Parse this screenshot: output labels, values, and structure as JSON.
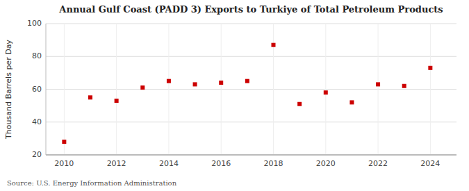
{
  "chart_data": {
    "type": "scatter",
    "title": "Annual Gulf Coast (PADD 3) Exports to Turkiye of Total Petroleum Products",
    "ylabel": "Thousand Barrels per Day",
    "source": "Source: U.S. Energy Information Administration",
    "x": [
      2010,
      2011,
      2012,
      2013,
      2014,
      2015,
      2016,
      2017,
      2018,
      2019,
      2020,
      2021,
      2022,
      2023,
      2024
    ],
    "values": [
      28,
      55,
      53,
      61,
      65,
      63,
      64,
      65,
      87,
      51,
      58,
      52,
      63,
      62,
      73
    ],
    "color": "#cc0000",
    "marker": "square",
    "xlim": [
      2009.3,
      2025.0
    ],
    "ylim": [
      20,
      100
    ],
    "xticks": [
      2010,
      2012,
      2014,
      2016,
      2018,
      2020,
      2022,
      2024
    ],
    "yticks": [
      20,
      40,
      60,
      80,
      100
    ],
    "grid": true
  }
}
